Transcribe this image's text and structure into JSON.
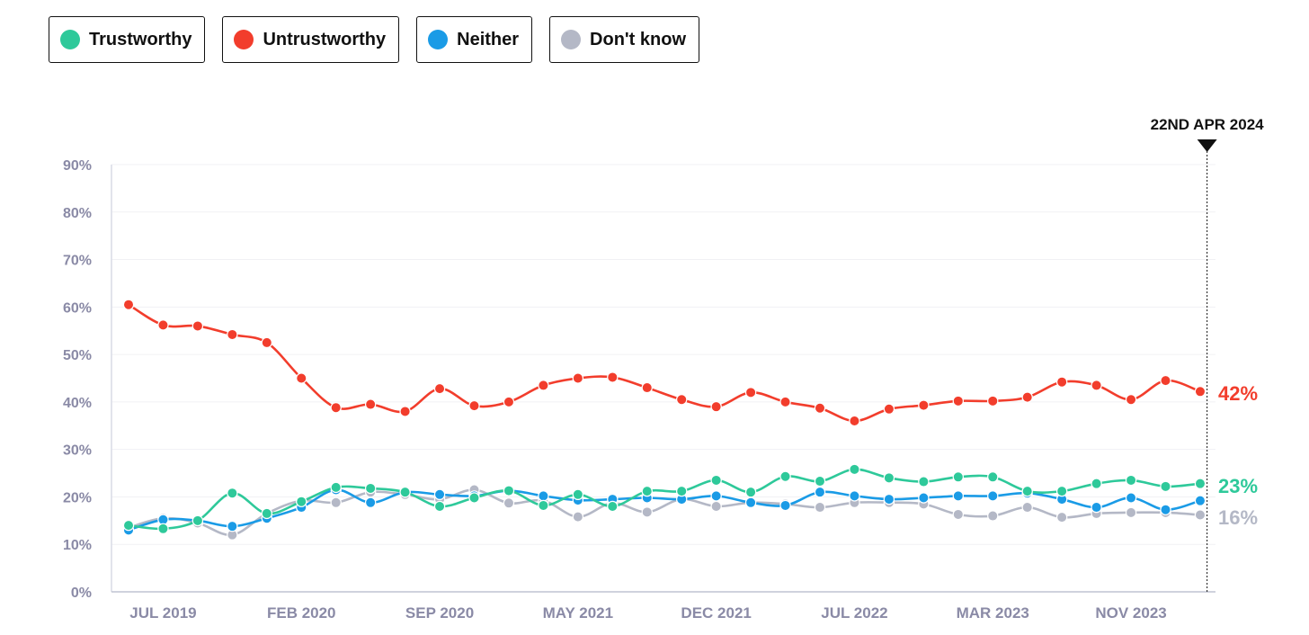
{
  "legend": {
    "items": [
      {
        "label": "Trustworthy",
        "color": "#2ec99a"
      },
      {
        "label": "Untrustworthy",
        "color": "#f23d2c"
      },
      {
        "label": "Neither",
        "color": "#1a9be6"
      },
      {
        "label": "Don't know",
        "color": "#b4b8c6"
      }
    ]
  },
  "chart_data": {
    "type": "line",
    "title": "",
    "xlabel": "",
    "ylabel": "",
    "ylim": [
      0,
      90
    ],
    "yticks": [
      0,
      10,
      20,
      30,
      40,
      50,
      60,
      70,
      80,
      90
    ],
    "ytick_labels": [
      "0%",
      "10%",
      "20%",
      "30%",
      "40%",
      "50%",
      "60%",
      "70%",
      "80%",
      "90%"
    ],
    "xtick_labels": [
      {
        "label": "JUL 2019",
        "index": 1
      },
      {
        "label": "FEB 2020",
        "index": 5
      },
      {
        "label": "SEP 2020",
        "index": 9
      },
      {
        "label": "MAY 2021",
        "index": 13
      },
      {
        "label": "DEC 2021",
        "index": 17
      },
      {
        "label": "JUL 2022",
        "index": 21
      },
      {
        "label": "MAR 2023",
        "index": 25
      },
      {
        "label": "NOV 2023",
        "index": 29
      }
    ],
    "grid": true,
    "marker": {
      "label": "22ND APR 2024",
      "index": 31.2
    },
    "series": [
      {
        "name": "Untrustworthy",
        "color": "#f23d2c",
        "end_label": "42%",
        "values": [
          60.5,
          56.2,
          56,
          54.2,
          52.5,
          45,
          38.8,
          39.5,
          38,
          42.8,
          39.2,
          40,
          43.5,
          45,
          45.2,
          43,
          40.5,
          39,
          42,
          40,
          38.7,
          36,
          38.5,
          39.3,
          40.2,
          40.2,
          41,
          44.2,
          43.5,
          40.5,
          44.5,
          42.2
        ]
      },
      {
        "name": "Trustworthy",
        "color": "#2ec99a",
        "end_label": "23%",
        "values": [
          14,
          13.3,
          15,
          20.8,
          16.5,
          19,
          22,
          21.8,
          21,
          18,
          19.8,
          21.3,
          18.2,
          20.5,
          18,
          21.2,
          21.2,
          23.5,
          21,
          24.3,
          23.3,
          25.8,
          24,
          23.2,
          24.2,
          24.2,
          21.2,
          21.2,
          22.8,
          23.5,
          22.2,
          22.8
        ]
      },
      {
        "name": "Neither",
        "color": "#1a9be6",
        "end_label": "",
        "values": [
          13,
          15.2,
          15,
          13.8,
          15.5,
          17.8,
          21.5,
          18.8,
          21,
          20.5,
          20.2,
          21.3,
          20.2,
          19.3,
          19.5,
          19.8,
          19.5,
          20.2,
          18.8,
          18.2,
          21,
          20.2,
          19.5,
          19.8,
          20.2,
          20.2,
          20.8,
          19.5,
          17.8,
          19.8,
          17.3,
          19.2
        ]
      },
      {
        "name": "Don't know",
        "color": "#b4b8c6",
        "end_label": "16%",
        "values": [
          13.5,
          15.5,
          14.5,
          12,
          16.5,
          19.2,
          18.8,
          21,
          20.5,
          19.5,
          21.5,
          18.7,
          19.2,
          15.8,
          18.7,
          16.8,
          19.5,
          18,
          18.8,
          18.5,
          17.8,
          18.8,
          18.8,
          18.5,
          16.3,
          16,
          17.8,
          15.7,
          16.5,
          16.7,
          16.7,
          16.2
        ]
      }
    ]
  }
}
